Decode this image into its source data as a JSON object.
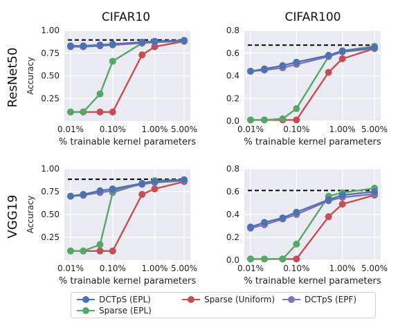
{
  "col_titles": [
    "CIFAR10",
    "CIFAR100"
  ],
  "row_titles": [
    "ResNet50",
    "VGG19"
  ],
  "legend": [
    {
      "label": "DCTpS (EPL)",
      "color": "#4c72b0"
    },
    {
      "label": "Sparse (Uniform)",
      "color": "#c44e52"
    },
    {
      "label": "DCTpS (EPF)",
      "color": "#8172b3"
    },
    {
      "label": "Sparse (EPL)",
      "color": "#55a868"
    }
  ],
  "chart_data": [
    {
      "type": "line",
      "title": "CIFAR10",
      "row": "ResNet50",
      "xlabel": "% trainable kernel parameters",
      "ylabel": "Accuracy",
      "x_scale": "log",
      "xlim": [
        0.01,
        5.0
      ],
      "ylim": [
        0.0,
        1.0
      ],
      "grid": true,
      "x_ticks": [
        0.01,
        0.1,
        1.0,
        5.0
      ],
      "x_tick_labels": [
        "0.01%",
        "0.10%",
        "1.00%",
        "5.00%"
      ],
      "y_ticks": [
        0.25,
        0.5,
        0.75,
        1.0
      ],
      "y_tick_labels": [
        "0.25",
        "0.50",
        "0.75",
        "1.00"
      ],
      "baseline": 0.895,
      "x": [
        0.01,
        0.02,
        0.05,
        0.1,
        0.5,
        1.0,
        5.0
      ],
      "series": [
        {
          "name": "Sparse (Uniform)",
          "color": "#c44e52",
          "values": [
            0.1,
            0.1,
            0.1,
            0.1,
            0.73,
            0.82,
            0.88
          ]
        },
        {
          "name": "Sparse (EPL)",
          "color": "#55a868",
          "values": [
            0.1,
            0.1,
            0.3,
            0.66,
            0.86,
            0.88,
            0.89
          ]
        },
        {
          "name": "DCTpS (EPF)",
          "color": "#8172b3",
          "values": [
            0.82,
            0.82,
            0.83,
            0.84,
            0.86,
            0.87,
            0.88
          ]
        },
        {
          "name": "DCTpS (EPL)",
          "color": "#4c72b0",
          "values": [
            0.83,
            0.83,
            0.84,
            0.85,
            0.87,
            0.88,
            0.89
          ]
        }
      ]
    },
    {
      "type": "line",
      "title": "CIFAR100",
      "row": "ResNet50",
      "xlabel": "% trainable kernel parameters",
      "ylabel": "",
      "x_scale": "log",
      "xlim": [
        0.01,
        5.0
      ],
      "ylim": [
        0.0,
        0.8
      ],
      "grid": true,
      "x_ticks": [
        0.01,
        0.1,
        1.0,
        5.0
      ],
      "x_tick_labels": [
        "0.01%",
        "0.10%",
        "1.00%",
        "5.00%"
      ],
      "y_ticks": [
        0.0,
        0.2,
        0.4,
        0.6,
        0.8
      ],
      "y_tick_labels": [
        "0.0",
        "0.2",
        "0.4",
        "0.6",
        "0.8"
      ],
      "baseline": 0.67,
      "x": [
        0.01,
        0.02,
        0.05,
        0.1,
        0.5,
        1.0,
        5.0
      ],
      "series": [
        {
          "name": "Sparse (Uniform)",
          "color": "#c44e52",
          "values": [
            0.01,
            0.01,
            0.01,
            0.01,
            0.43,
            0.55,
            0.64
          ]
        },
        {
          "name": "Sparse (EPL)",
          "color": "#55a868",
          "values": [
            0.01,
            0.01,
            0.02,
            0.11,
            0.57,
            0.62,
            0.66
          ]
        },
        {
          "name": "DCTpS (EPF)",
          "color": "#8172b3",
          "values": [
            0.44,
            0.45,
            0.47,
            0.5,
            0.57,
            0.61,
            0.64
          ]
        },
        {
          "name": "DCTpS (EPL)",
          "color": "#4c72b0",
          "values": [
            0.44,
            0.46,
            0.49,
            0.52,
            0.58,
            0.62,
            0.65
          ]
        }
      ]
    },
    {
      "type": "line",
      "title": "CIFAR10",
      "row": "VGG19",
      "xlabel": "% trainable kernel parameters",
      "ylabel": "Accuracy",
      "x_scale": "log",
      "xlim": [
        0.01,
        5.0
      ],
      "ylim": [
        0.0,
        1.0
      ],
      "grid": true,
      "x_ticks": [
        0.01,
        0.1,
        1.0,
        5.0
      ],
      "x_tick_labels": [
        "0.01%",
        "0.10%",
        "1.00%",
        "5.00%"
      ],
      "y_ticks": [
        0.25,
        0.5,
        0.75,
        1.0
      ],
      "y_tick_labels": [
        "0.25",
        "0.50",
        "0.75",
        "1.00"
      ],
      "baseline": 0.885,
      "x": [
        0.01,
        0.02,
        0.05,
        0.1,
        0.5,
        1.0,
        5.0
      ],
      "series": [
        {
          "name": "Sparse (Uniform)",
          "color": "#c44e52",
          "values": [
            0.1,
            0.1,
            0.1,
            0.1,
            0.72,
            0.78,
            0.86
          ]
        },
        {
          "name": "Sparse (EPL)",
          "color": "#55a868",
          "values": [
            0.1,
            0.1,
            0.17,
            0.74,
            0.84,
            0.87,
            0.88
          ]
        },
        {
          "name": "DCTpS (EPF)",
          "color": "#8172b3",
          "values": [
            0.7,
            0.71,
            0.74,
            0.76,
            0.83,
            0.85,
            0.87
          ]
        },
        {
          "name": "DCTpS (EPL)",
          "color": "#4c72b0",
          "values": [
            0.7,
            0.72,
            0.76,
            0.78,
            0.84,
            0.86,
            0.88
          ]
        }
      ]
    },
    {
      "type": "line",
      "title": "CIFAR100",
      "row": "VGG19",
      "xlabel": "% trainable kernel parameters",
      "ylabel": "",
      "x_scale": "log",
      "xlim": [
        0.01,
        5.0
      ],
      "ylim": [
        0.0,
        0.8
      ],
      "grid": true,
      "x_ticks": [
        0.01,
        0.1,
        1.0,
        5.0
      ],
      "x_tick_labels": [
        "0.01%",
        "0.10%",
        "1.00%",
        "5.00%"
      ],
      "y_ticks": [
        0.0,
        0.2,
        0.4,
        0.6,
        0.8
      ],
      "y_tick_labels": [
        "0.0",
        "0.2",
        "0.4",
        "0.6",
        "0.8"
      ],
      "baseline": 0.61,
      "x": [
        0.01,
        0.02,
        0.05,
        0.1,
        0.5,
        1.0,
        5.0
      ],
      "series": [
        {
          "name": "Sparse (Uniform)",
          "color": "#c44e52",
          "values": [
            0.01,
            0.01,
            0.01,
            0.01,
            0.38,
            0.49,
            0.57
          ]
        },
        {
          "name": "Sparse (EPL)",
          "color": "#55a868",
          "values": [
            0.01,
            0.01,
            0.01,
            0.14,
            0.56,
            0.59,
            0.63
          ]
        },
        {
          "name": "DCTpS (EPF)",
          "color": "#8172b3",
          "values": [
            0.28,
            0.31,
            0.36,
            0.4,
            0.52,
            0.55,
            0.58
          ]
        },
        {
          "name": "DCTpS (EPL)",
          "color": "#4c72b0",
          "values": [
            0.29,
            0.33,
            0.37,
            0.42,
            0.53,
            0.57,
            0.6
          ]
        }
      ]
    }
  ]
}
